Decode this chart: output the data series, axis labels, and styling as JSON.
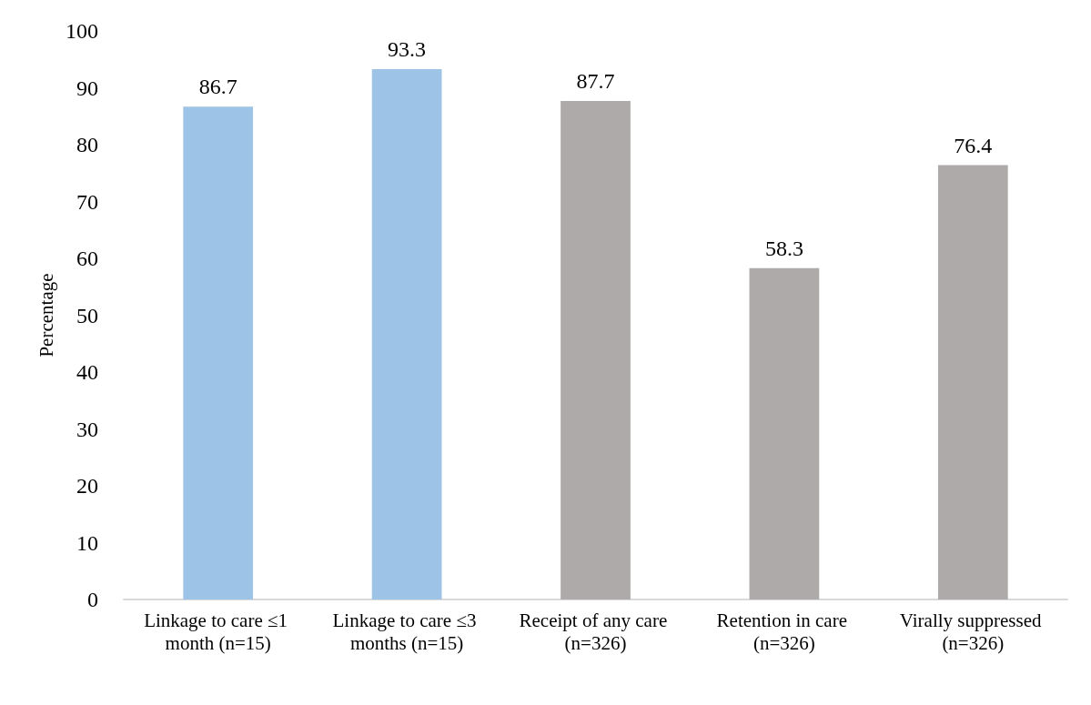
{
  "chart_data": {
    "type": "bar",
    "ylabel": "Percentage",
    "categories": [
      "Linkage to care ≤1 month (n=15)",
      "Linkage to care ≤3 months (n=15)",
      "Receipt of any care (n=326)",
      "Retention in care (n=326)",
      "Virally suppressed (n=326)"
    ],
    "values": [
      86.7,
      93.3,
      87.7,
      58.3,
      76.4
    ],
    "colors": [
      "#9dc3e6",
      "#9dc3e6",
      "#aeaaaa",
      "#aeaaaa",
      "#aeaaaa"
    ],
    "ylim": [
      0,
      100
    ],
    "yticks": [
      0,
      10,
      20,
      30,
      40,
      50,
      60,
      70,
      80,
      90,
      100
    ],
    "data_labels": true,
    "grid": false
  }
}
